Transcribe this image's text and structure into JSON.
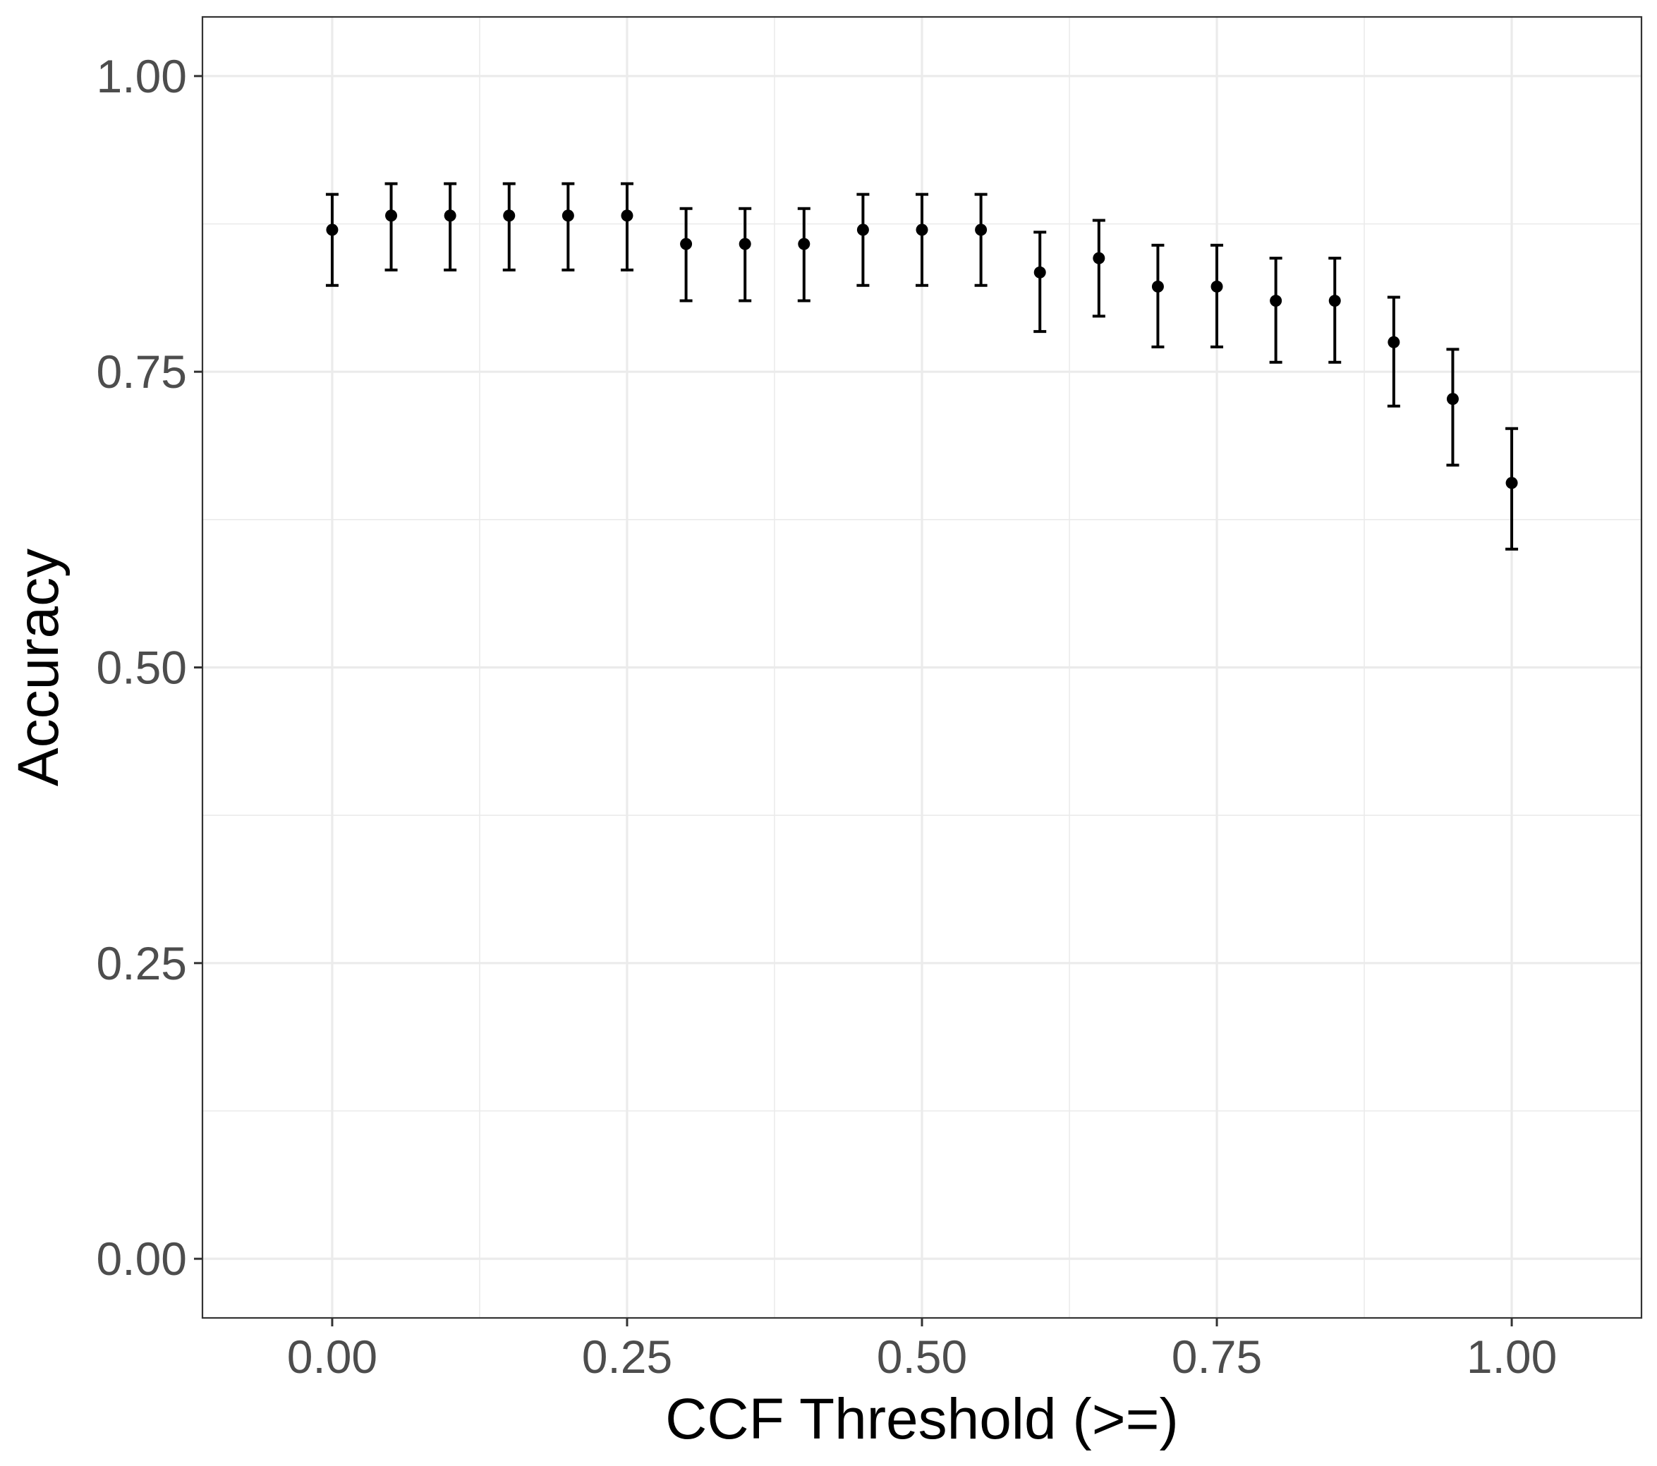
{
  "chart_data": {
    "type": "scatter",
    "title": "",
    "xlabel": "CCF Threshold (>=)",
    "ylabel": "Accuracy",
    "xlim": [
      -0.11,
      1.11
    ],
    "ylim": [
      -0.05,
      1.05
    ],
    "x_ticks": [
      0,
      0.25,
      0.5,
      0.75,
      1
    ],
    "x_tick_labels": [
      "0.00",
      "0.25",
      "0.50",
      "0.75",
      "1.00"
    ],
    "y_ticks": [
      0,
      0.25,
      0.5,
      0.75,
      1
    ],
    "y_tick_labels": [
      "0.00",
      "0.25",
      "0.50",
      "0.75",
      "1.00"
    ],
    "grid": true,
    "legend": "none",
    "error_bars": true,
    "point_color": "#000000",
    "series": [
      {
        "x": [
          0.0,
          0.05,
          0.1,
          0.15,
          0.2,
          0.25,
          0.3,
          0.35,
          0.4,
          0.45,
          0.5,
          0.55,
          0.6,
          0.65,
          0.7,
          0.75,
          0.8,
          0.85,
          0.9,
          0.95,
          1.0
        ],
        "y": [
          0.87,
          0.882,
          0.882,
          0.882,
          0.882,
          0.882,
          0.858,
          0.858,
          0.858,
          0.87,
          0.87,
          0.87,
          0.834,
          0.846,
          0.822,
          0.822,
          0.81,
          0.81,
          0.775,
          0.727,
          0.656
        ],
        "lower": [
          0.823,
          0.836,
          0.836,
          0.836,
          0.836,
          0.836,
          0.81,
          0.81,
          0.81,
          0.823,
          0.823,
          0.823,
          0.784,
          0.797,
          0.771,
          0.771,
          0.758,
          0.758,
          0.721,
          0.671,
          0.6
        ],
        "upper": [
          0.9,
          0.909,
          0.909,
          0.909,
          0.909,
          0.909,
          0.888,
          0.888,
          0.888,
          0.9,
          0.9,
          0.9,
          0.868,
          0.878,
          0.857,
          0.857,
          0.846,
          0.846,
          0.813,
          0.769,
          0.702
        ]
      }
    ]
  }
}
